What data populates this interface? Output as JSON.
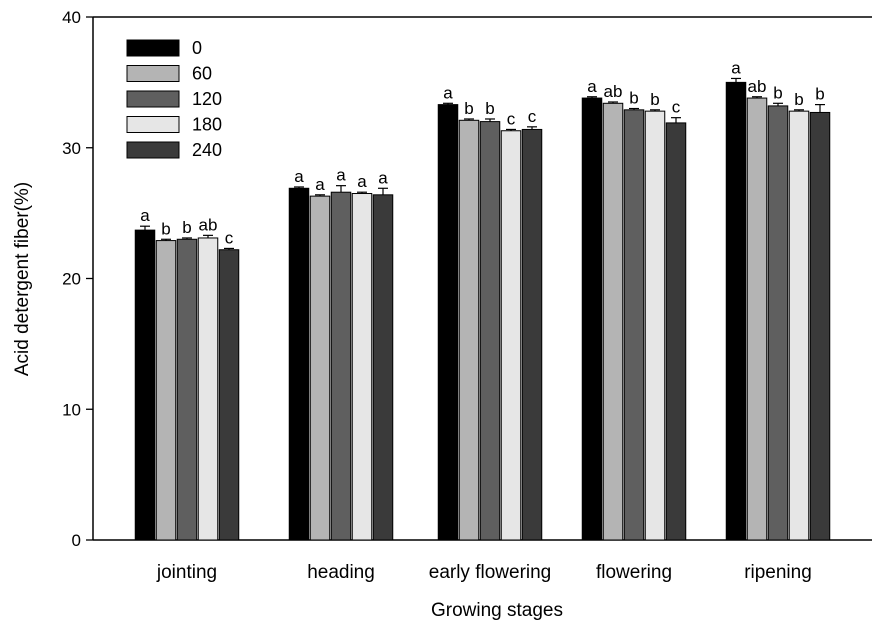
{
  "chart_data": {
    "type": "bar",
    "xlabel": "Growing stages",
    "ylabel": "Acid detergent fiber(%)",
    "ylim": [
      0,
      40
    ],
    "yticks": [
      0,
      10,
      20,
      30,
      40
    ],
    "grid": false,
    "legend_position": "top-left",
    "categories": [
      "jointing",
      "heading",
      "early flowering",
      "flowering",
      "ripening"
    ],
    "series": [
      {
        "name": "0",
        "color": "#000000",
        "values": [
          23.7,
          26.9,
          33.3,
          33.8,
          35.0
        ],
        "errors": [
          0.3,
          0.1,
          0.1,
          0.1,
          0.3
        ],
        "letters": [
          "a",
          "a",
          "a",
          "a",
          "a"
        ]
      },
      {
        "name": "60",
        "color": "#b4b4b4",
        "values": [
          22.9,
          26.3,
          32.1,
          33.4,
          33.8
        ],
        "errors": [
          0.1,
          0.1,
          0.1,
          0.1,
          0.1
        ],
        "letters": [
          "b",
          "a",
          "b",
          "ab",
          "ab"
        ]
      },
      {
        "name": "120",
        "color": "#5f5f5f",
        "values": [
          23.0,
          26.6,
          32.0,
          32.9,
          33.2
        ],
        "errors": [
          0.1,
          0.5,
          0.2,
          0.1,
          0.2
        ],
        "letters": [
          "b",
          "a",
          "b",
          "b",
          "b"
        ]
      },
      {
        "name": "180",
        "color": "#e6e6e6",
        "values": [
          23.1,
          26.5,
          31.3,
          32.8,
          32.8
        ],
        "errors": [
          0.2,
          0.1,
          0.1,
          0.1,
          0.1
        ],
        "letters": [
          "ab",
          "a",
          "c",
          "b",
          "b"
        ]
      },
      {
        "name": "240",
        "color": "#3a3a3a",
        "values": [
          22.2,
          26.4,
          31.4,
          31.9,
          32.7
        ],
        "errors": [
          0.1,
          0.5,
          0.2,
          0.4,
          0.6
        ],
        "letters": [
          "c",
          "a",
          "c",
          "c",
          "b"
        ]
      }
    ]
  }
}
